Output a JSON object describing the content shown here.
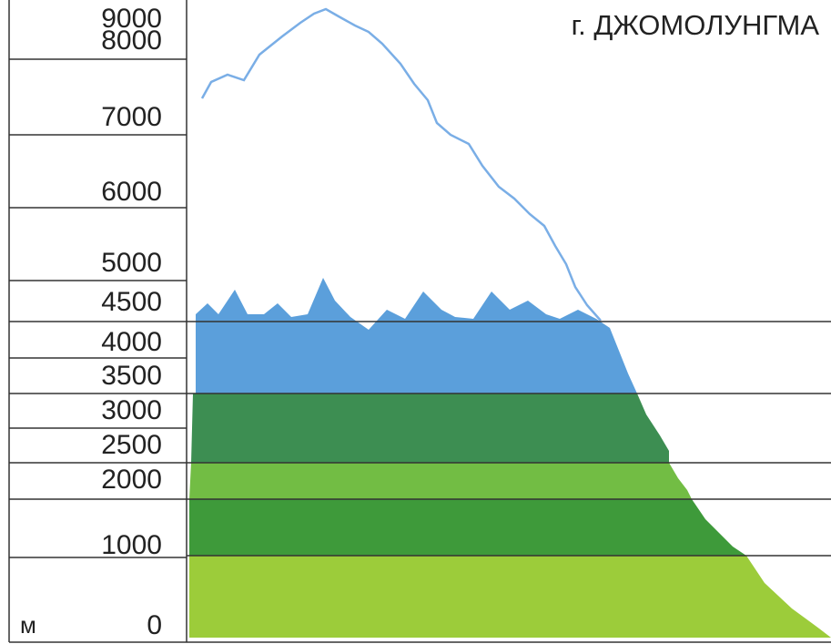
{
  "title": "г. ДЖОМОЛУНГМА",
  "scale": {
    "unit": "м",
    "labels": [
      "9000",
      "8000",
      "7000",
      "6000",
      "5000",
      "4500",
      "4000",
      "3500",
      "3000",
      "2500",
      "2000",
      "1000",
      "0"
    ]
  }
}
